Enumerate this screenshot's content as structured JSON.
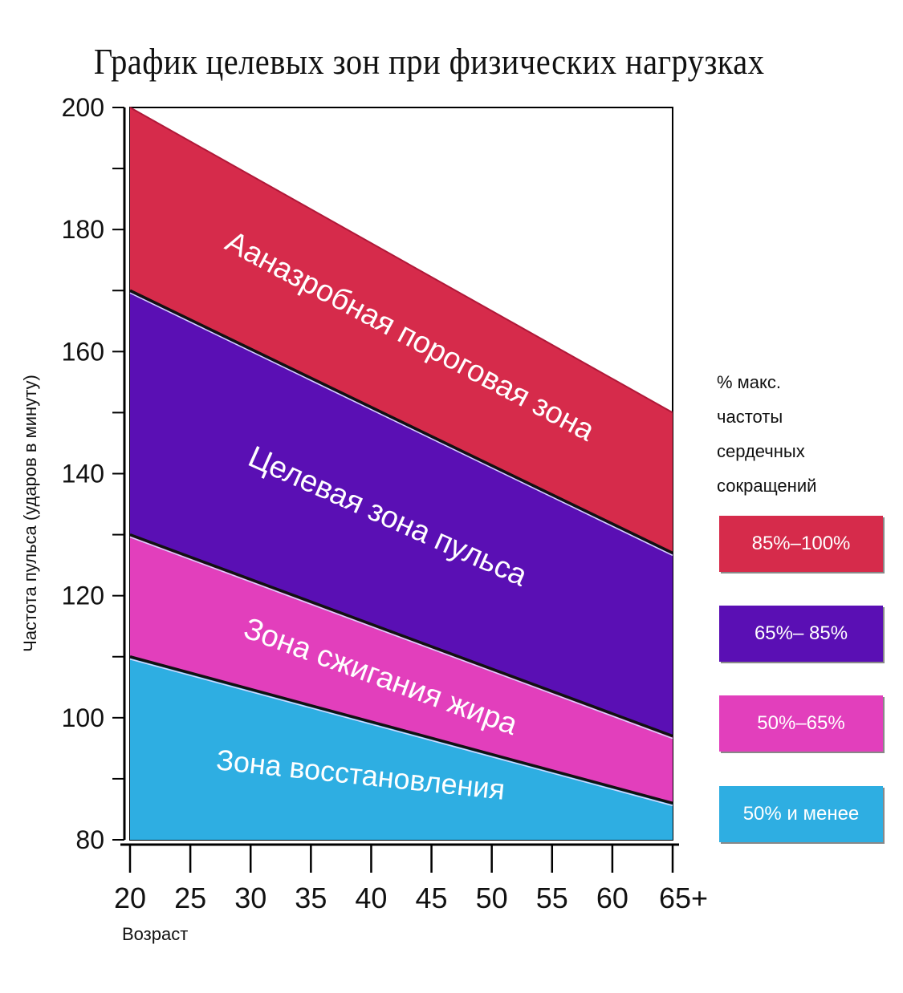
{
  "title": "График целевых зон при физических нагрузках",
  "chart_data": {
    "type": "area",
    "title": "График целевых зон при физических нагрузках",
    "xlabel": "Возраст",
    "ylabel": "Частота пульса (ударов в минуту)",
    "x_ticks": [
      "20",
      "25",
      "30",
      "35",
      "40",
      "45",
      "50",
      "55",
      "60",
      "65+"
    ],
    "y_ticks": [
      80,
      100,
      120,
      140,
      160,
      180,
      200
    ],
    "xlim": [
      20,
      65
    ],
    "ylim": [
      80,
      200
    ],
    "grid": false,
    "legend_title": [
      "% макс.",
      "частоты",
      "сердечных",
      "сокращений"
    ],
    "legend_position": "right",
    "boundaries": [
      {
        "at_x20": 200,
        "at_x65": 150
      },
      {
        "at_x20": 170,
        "at_x65": 127
      },
      {
        "at_x20": 130,
        "at_x65": 97
      },
      {
        "at_x20": 110,
        "at_x65": 86
      },
      {
        "at_x20": 80,
        "at_x65": 80
      }
    ],
    "series": [
      {
        "label": "Ааназробная пороговая зона",
        "legend": "85%–100%",
        "color": "#d62b4b",
        "upper": [
          200,
          150
        ],
        "lower": [
          170,
          127
        ]
      },
      {
        "label": "Целевая зона пульса",
        "legend": "65%– 85%",
        "color": "#5a0fb4",
        "upper": [
          170,
          127
        ],
        "lower": [
          130,
          97
        ]
      },
      {
        "label": "Зона сжигания жира",
        "legend": "50%–65%",
        "color": "#e23fbc",
        "upper": [
          130,
          97
        ],
        "lower": [
          110,
          86
        ]
      },
      {
        "label": "Зона восстановления",
        "legend": "50% и менее",
        "color": "#2eaee2",
        "upper": [
          110,
          86
        ],
        "lower": [
          80,
          80
        ]
      }
    ]
  }
}
